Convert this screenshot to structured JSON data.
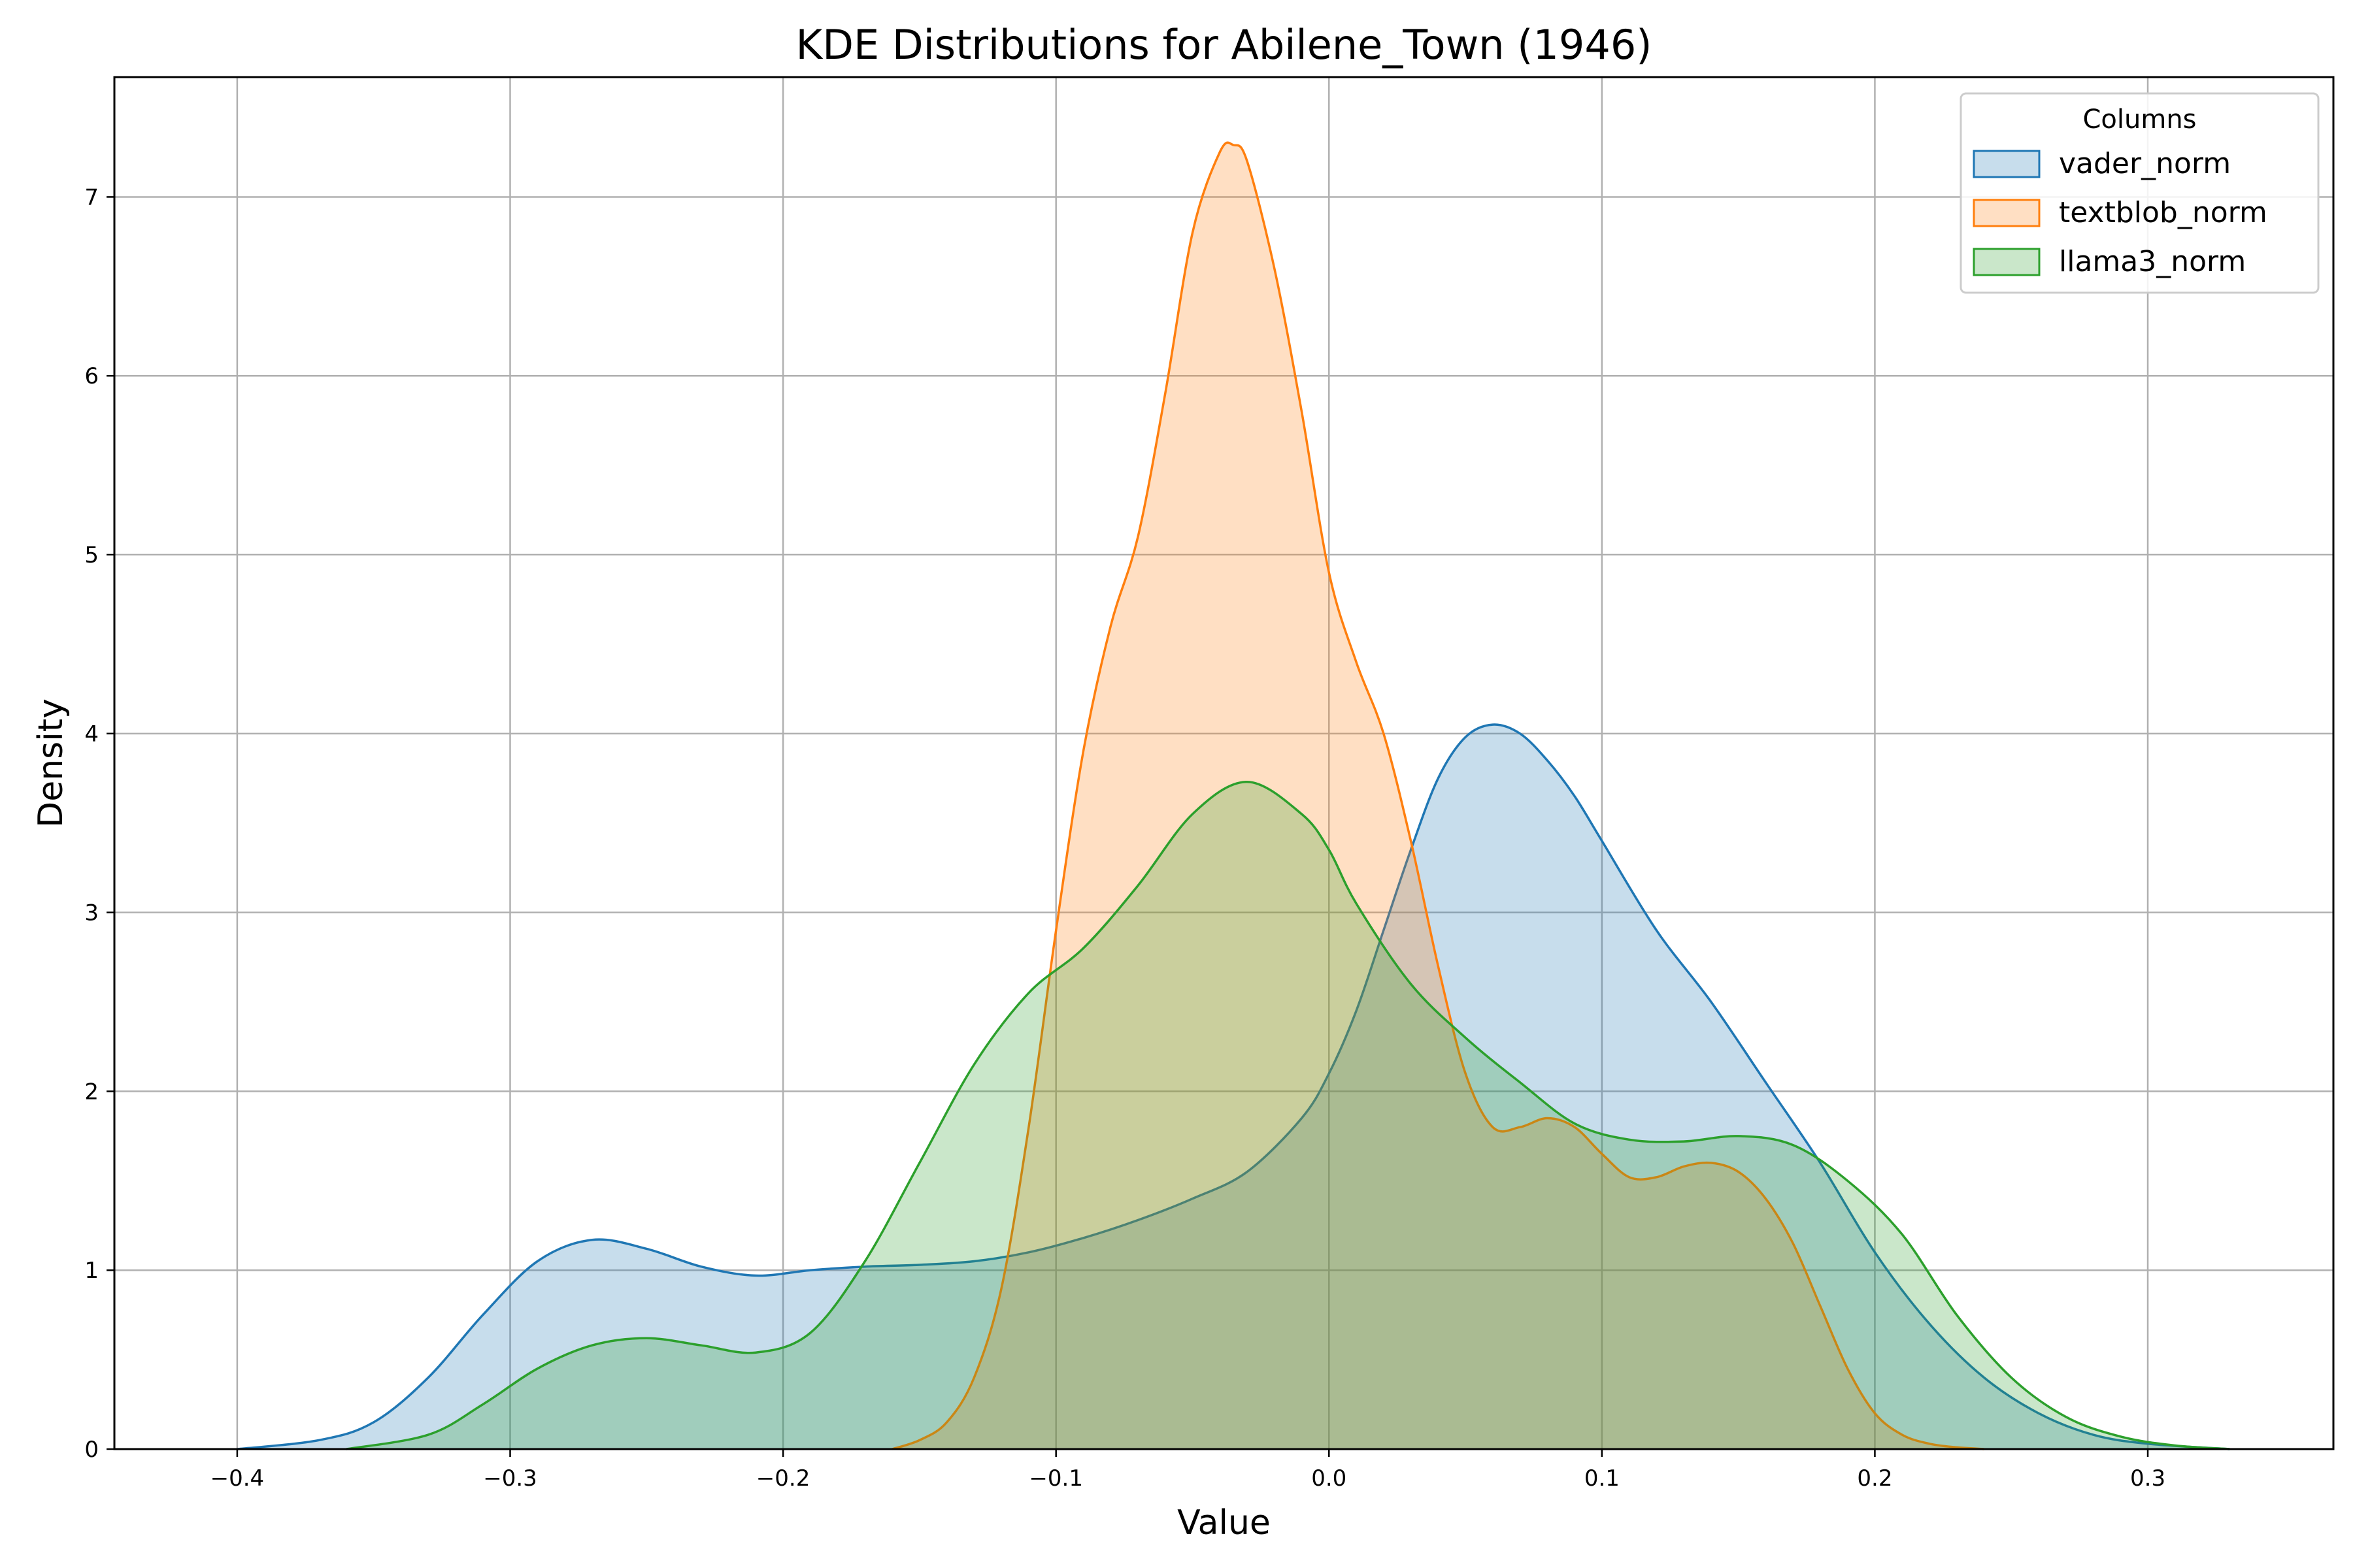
{
  "chart_data": {
    "type": "area",
    "title": "KDE Distributions for Abilene_Town (1946)",
    "xlabel": "Value",
    "ylabel": "Density",
    "xlim": [
      -0.445,
      0.368
    ],
    "ylim": [
      0,
      7.67
    ],
    "xticks": [
      -0.4,
      -0.3,
      -0.2,
      -0.1,
      0.0,
      0.1,
      0.2,
      0.3
    ],
    "xtick_labels": [
      "−0.4",
      "−0.3",
      "−0.2",
      "−0.1",
      "0.0",
      "0.1",
      "0.2",
      "0.3"
    ],
    "yticks": [
      0,
      1,
      2,
      3,
      4,
      5,
      6,
      7
    ],
    "ytick_labels": [
      "0",
      "1",
      "2",
      "3",
      "4",
      "5",
      "6",
      "7"
    ],
    "grid": true,
    "legend": {
      "title": "Columns",
      "position": "top-right"
    },
    "series": [
      {
        "name": "vader_norm",
        "color": "#1f77b4",
        "x": [
          -0.4,
          -0.37,
          -0.35,
          -0.33,
          -0.31,
          -0.29,
          -0.27,
          -0.25,
          -0.23,
          -0.21,
          -0.19,
          -0.17,
          -0.15,
          -0.13,
          -0.11,
          -0.09,
          -0.07,
          -0.05,
          -0.03,
          -0.01,
          0.0,
          0.01,
          0.02,
          0.03,
          0.04,
          0.05,
          0.06,
          0.07,
          0.08,
          0.09,
          0.1,
          0.12,
          0.14,
          0.16,
          0.18,
          0.2,
          0.22,
          0.24,
          0.26,
          0.28,
          0.3,
          0.33
        ],
        "y": [
          0.0,
          0.05,
          0.15,
          0.4,
          0.75,
          1.05,
          1.17,
          1.12,
          1.02,
          0.97,
          1.0,
          1.02,
          1.03,
          1.05,
          1.1,
          1.18,
          1.28,
          1.4,
          1.55,
          1.85,
          2.1,
          2.45,
          2.9,
          3.35,
          3.75,
          3.98,
          4.05,
          4.0,
          3.85,
          3.65,
          3.4,
          2.9,
          2.5,
          2.05,
          1.6,
          1.1,
          0.7,
          0.4,
          0.2,
          0.08,
          0.03,
          0.0
        ]
      },
      {
        "name": "textblob_norm",
        "color": "#ff7f0e",
        "x": [
          -0.16,
          -0.15,
          -0.14,
          -0.13,
          -0.12,
          -0.11,
          -0.1,
          -0.09,
          -0.08,
          -0.07,
          -0.06,
          -0.05,
          -0.04,
          -0.035,
          -0.03,
          -0.02,
          -0.01,
          0.0,
          0.01,
          0.02,
          0.03,
          0.04,
          0.05,
          0.06,
          0.07,
          0.08,
          0.09,
          0.1,
          0.11,
          0.12,
          0.13,
          0.14,
          0.15,
          0.16,
          0.17,
          0.18,
          0.19,
          0.2,
          0.21,
          0.22,
          0.23,
          0.24
        ],
        "y": [
          0.0,
          0.05,
          0.15,
          0.4,
          0.9,
          1.8,
          2.9,
          3.9,
          4.6,
          5.1,
          5.9,
          6.8,
          7.25,
          7.29,
          7.2,
          6.6,
          5.8,
          4.9,
          4.4,
          4.0,
          3.4,
          2.7,
          2.1,
          1.8,
          1.8,
          1.85,
          1.8,
          1.65,
          1.52,
          1.52,
          1.58,
          1.6,
          1.55,
          1.4,
          1.15,
          0.8,
          0.45,
          0.2,
          0.08,
          0.03,
          0.01,
          0.0
        ]
      },
      {
        "name": "llama3_norm",
        "color": "#2ca02c",
        "x": [
          -0.36,
          -0.33,
          -0.31,
          -0.29,
          -0.27,
          -0.25,
          -0.23,
          -0.21,
          -0.19,
          -0.17,
          -0.15,
          -0.13,
          -0.11,
          -0.09,
          -0.07,
          -0.05,
          -0.03,
          -0.01,
          0.0,
          0.01,
          0.03,
          0.05,
          0.07,
          0.09,
          0.11,
          0.13,
          0.15,
          0.17,
          0.19,
          0.21,
          0.23,
          0.25,
          0.27,
          0.29,
          0.31,
          0.33
        ],
        "y": [
          0.0,
          0.08,
          0.25,
          0.45,
          0.58,
          0.62,
          0.58,
          0.54,
          0.65,
          1.05,
          1.6,
          2.15,
          2.55,
          2.8,
          3.15,
          3.55,
          3.73,
          3.55,
          3.35,
          3.05,
          2.6,
          2.3,
          2.05,
          1.82,
          1.73,
          1.72,
          1.75,
          1.7,
          1.5,
          1.2,
          0.75,
          0.4,
          0.18,
          0.07,
          0.02,
          0.0
        ]
      }
    ]
  }
}
